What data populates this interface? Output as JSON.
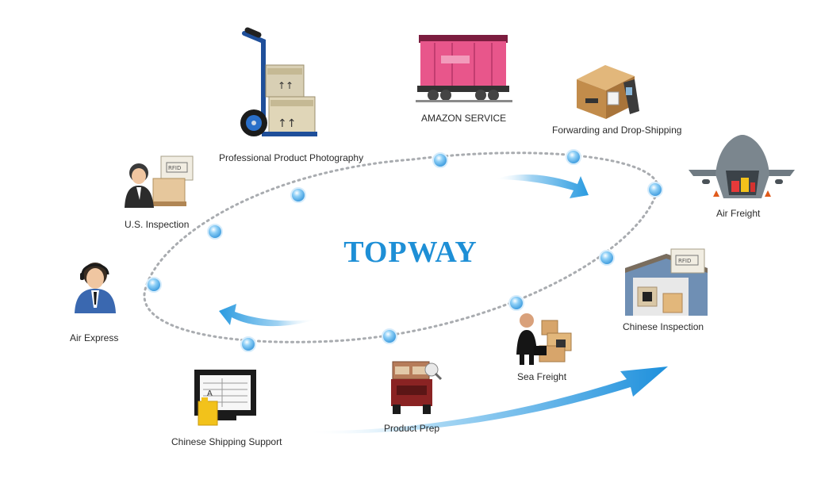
{
  "diagram": {
    "title": "TOPWAY",
    "colors": {
      "title": "#1e8fd6",
      "arrow": "#2b9be0",
      "node": "#4aa8ea",
      "path": "#a9acb0"
    },
    "services": [
      {
        "key": "professional-product-photography",
        "label": "Professional Product Photography",
        "icon": "hand-truck-boxes-icon"
      },
      {
        "key": "amazon-service",
        "label": "AMAZON SERVICE",
        "icon": "train-wagon-icon"
      },
      {
        "key": "forwarding-drop-shipping",
        "label": "Forwarding and Drop-Shipping",
        "icon": "box-scanner-icon"
      },
      {
        "key": "air-freight",
        "label": "Air Freight",
        "icon": "cargo-plane-icon"
      },
      {
        "key": "us-inspection",
        "label": "U.S. Inspection",
        "icon": "inspector-rfid-icon"
      },
      {
        "key": "air-express",
        "label": "Air Express",
        "icon": "operator-headset-icon"
      },
      {
        "key": "chinese-inspection",
        "label": "Chinese Inspection",
        "icon": "rfid-warehouse-icon"
      },
      {
        "key": "sea-freight",
        "label": "Sea Freight",
        "icon": "businessman-boxes-icon"
      },
      {
        "key": "product-prep",
        "label": "Product Prep",
        "icon": "delivery-truck-icon"
      },
      {
        "key": "chinese-shipping-support",
        "label": "Chinese Shipping Support",
        "icon": "monitor-document-icon"
      }
    ]
  }
}
